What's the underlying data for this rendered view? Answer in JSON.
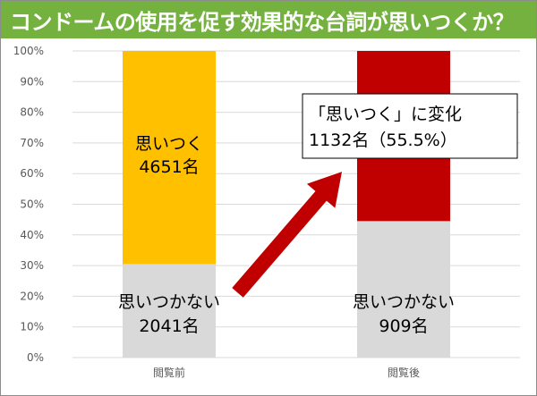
{
  "title": "コンドームの使用を促す効果的な台詞が思いつくか？",
  "colors": {
    "title_bg": "#74b13f",
    "title_text": "#ffffff",
    "grid": "#d9d9d9",
    "not_think_of": "#d9d9d9",
    "think_of_before": "#ffc000",
    "think_of_after": "#c00000",
    "arrow": "#c00000"
  },
  "chart_data": {
    "type": "bar",
    "stacked": true,
    "normalized": true,
    "categories": [
      "閲覧前",
      "閲覧後"
    ],
    "series": [
      {
        "name": "思いつかない",
        "values": [
          30.5,
          44.5
        ]
      },
      {
        "name": "思いつく",
        "values": [
          69.5,
          55.5
        ]
      }
    ],
    "counts": {
      "before_not_think_of": 2041,
      "before_think_of": 4651,
      "after_not_think_of": 909,
      "after_think_of": 1132
    },
    "ylim": [
      0,
      100
    ],
    "yticks": [
      0,
      10,
      20,
      30,
      40,
      50,
      60,
      70,
      80,
      90,
      100
    ],
    "ytick_labels": [
      "0%",
      "10%",
      "20%",
      "30%",
      "40%",
      "50%",
      "60%",
      "70%",
      "80%",
      "90%",
      "100%"
    ],
    "grid": true,
    "legend": "none",
    "labels": {
      "before_think_of_line1": "思いつく",
      "before_think_of_line2": "4651名",
      "before_not_think_of_line1": "思いつかない",
      "before_not_think_of_line2": "2041名",
      "after_not_think_of_line1": "思いつかない",
      "after_not_think_of_line2": "909名"
    },
    "annotation": {
      "line1": "「思いつく」に変化",
      "line2": "1132名（55.5%）"
    }
  }
}
